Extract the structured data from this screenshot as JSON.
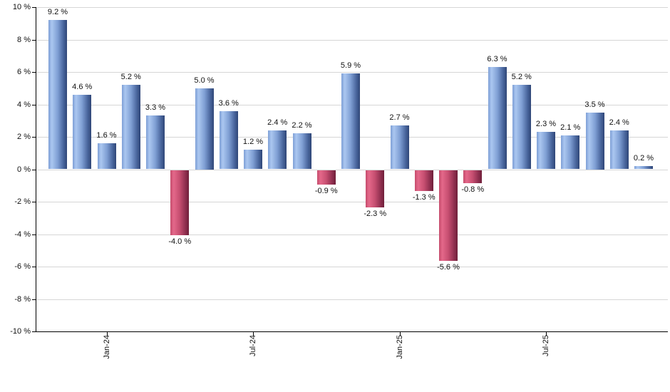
{
  "chart_data": {
    "type": "bar",
    "title": "",
    "xlabel": "",
    "ylabel": "",
    "ylim": [
      -10,
      10
    ],
    "y_tick_step": 2,
    "grid": true,
    "legend": "none",
    "y_tick_labels": [
      "10 %",
      "8 %",
      "6 %",
      "4 %",
      "2 %",
      "0 %",
      "-2 %",
      "-4 %",
      "-6 %",
      "-8 %",
      "-10 %"
    ],
    "x_tick_labels": [
      {
        "label": "Jan-24",
        "bar_index": 2
      },
      {
        "label": "Jul-24",
        "bar_index": 8
      },
      {
        "label": "Jan-25",
        "bar_index": 14
      },
      {
        "label": "Jul-25",
        "bar_index": 20
      }
    ],
    "values": [
      9.2,
      4.6,
      1.6,
      5.2,
      3.3,
      -4.0,
      5.0,
      3.6,
      1.2,
      2.4,
      2.2,
      -0.9,
      5.9,
      -2.3,
      2.7,
      -1.3,
      -5.6,
      -0.8,
      6.3,
      5.2,
      2.3,
      2.1,
      3.5,
      2.4,
      0.2
    ],
    "bar_labels": [
      "9.2 %",
      "4.6 %",
      "1.6 %",
      "5.2 %",
      "3.3 %",
      "-4.0 %",
      "5.0 %",
      "3.6 %",
      "1.2 %",
      "2.4 %",
      "2.2 %",
      "-0.9 %",
      "5.9 %",
      "-2.3 %",
      "2.7 %",
      "-1.3 %",
      "-5.6 %",
      "-0.8 %",
      "6.3 %",
      "5.2 %",
      "2.3 %",
      "2.1 %",
      "3.5 %",
      "2.4 %",
      "0.2 %"
    ],
    "colors": {
      "background": "#ffffff",
      "gridline": "#d6d6d6",
      "axis": "#000000",
      "label_text": "#111111",
      "positive_bar_gradient": [
        "#7e9fd6",
        "#abc7f0",
        "#7f9fd4",
        "#47639a",
        "#2f4677"
      ],
      "negative_bar_gradient": [
        "#c54c6c",
        "#e4688a",
        "#c64e70",
        "#8e2e4e",
        "#6f1f3a"
      ]
    }
  }
}
